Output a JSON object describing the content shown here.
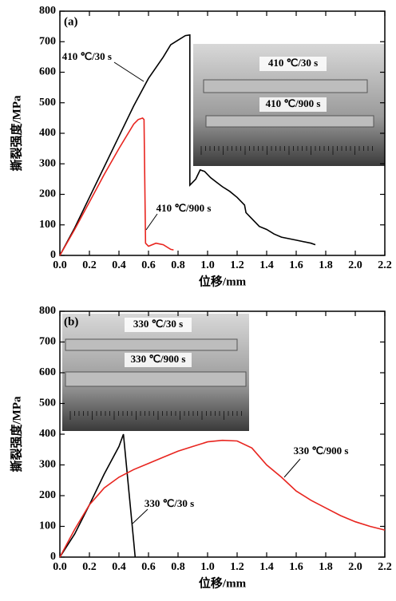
{
  "chart_data": [
    {
      "type": "line",
      "panel_label": "(a)",
      "xlabel": "位移/mm",
      "ylabel": "撕裂强度/MPa",
      "xlim": [
        0,
        2.2
      ],
      "ylim": [
        0,
        800
      ],
      "xticks": [
        {
          "value": 0,
          "label": "0.0"
        },
        0.2,
        0.4,
        0.6,
        0.8,
        {
          "value": 1,
          "label": "1.0"
        },
        1.2,
        1.4,
        1.6,
        1.8,
        {
          "value": 2,
          "label": "2.0"
        },
        2.2
      ],
      "yticks": [
        0,
        100,
        200,
        300,
        400,
        500,
        600,
        700,
        800
      ],
      "series": [
        {
          "name": "410 ℃/30 s",
          "color": "#000000",
          "x": [
            0,
            0.1,
            0.2,
            0.3,
            0.4,
            0.5,
            0.6,
            0.7,
            0.75,
            0.8,
            0.85,
            0.88,
            0.88,
            0.92,
            0.95,
            0.98,
            1.02,
            1.06,
            1.1,
            1.15,
            1.2,
            1.25,
            1.26,
            1.3,
            1.35,
            1.4,
            1.45,
            1.5,
            1.6,
            1.7,
            1.73
          ],
          "values": [
            0,
            90,
            190,
            290,
            390,
            490,
            580,
            650,
            690,
            705,
            720,
            722,
            230,
            250,
            280,
            275,
            255,
            240,
            225,
            210,
            190,
            165,
            140,
            120,
            95,
            85,
            70,
            60,
            50,
            40,
            35
          ]
        },
        {
          "name": "410 ℃/900 s",
          "color": "#e8251f",
          "x": [
            0,
            0.1,
            0.2,
            0.3,
            0.4,
            0.5,
            0.53,
            0.56,
            0.57,
            0.58,
            0.6,
            0.65,
            0.7,
            0.75,
            0.77
          ],
          "values": [
            0,
            85,
            175,
            265,
            350,
            430,
            445,
            450,
            445,
            40,
            30,
            40,
            35,
            20,
            18
          ]
        }
      ],
      "inset": {
        "labels": [
          "410 ℃/30 s",
          "410 ℃/900 s"
        ]
      }
    },
    {
      "type": "line",
      "panel_label": "(b)",
      "xlabel": "位移/mm",
      "ylabel": "撕裂强度/MPa",
      "xlim": [
        0,
        2.2
      ],
      "ylim": [
        0,
        800
      ],
      "xticks": [
        {
          "value": 0,
          "label": "0.0"
        },
        0.2,
        0.4,
        0.6,
        0.8,
        {
          "value": 1,
          "label": "1.0"
        },
        1.2,
        1.4,
        1.6,
        1.8,
        {
          "value": 2,
          "label": "2.0"
        },
        2.2
      ],
      "yticks": [
        0,
        100,
        200,
        300,
        400,
        500,
        600,
        700,
        800
      ],
      "series": [
        {
          "name": "330 ℃/30 s",
          "color": "#000000",
          "x": [
            0,
            0.1,
            0.2,
            0.3,
            0.4,
            0.43,
            0.5,
            0.51
          ],
          "values": [
            0,
            75,
            170,
            270,
            360,
            400,
            50,
            0
          ]
        },
        {
          "name": "330 ℃/900 s",
          "color": "#e8251f",
          "x": [
            0,
            0.1,
            0.2,
            0.3,
            0.4,
            0.5,
            0.6,
            0.7,
            0.8,
            0.9,
            1.0,
            1.1,
            1.2,
            1.3,
            1.4,
            1.5,
            1.6,
            1.7,
            1.8,
            1.9,
            2.0,
            2.1,
            2.2
          ],
          "values": [
            0,
            90,
            170,
            225,
            260,
            285,
            305,
            325,
            345,
            360,
            375,
            380,
            378,
            355,
            300,
            260,
            215,
            185,
            160,
            135,
            115,
            100,
            88
          ]
        }
      ],
      "inset": {
        "labels": [
          "330 ℃/30 s",
          "330 ℃/900 s"
        ]
      }
    }
  ]
}
